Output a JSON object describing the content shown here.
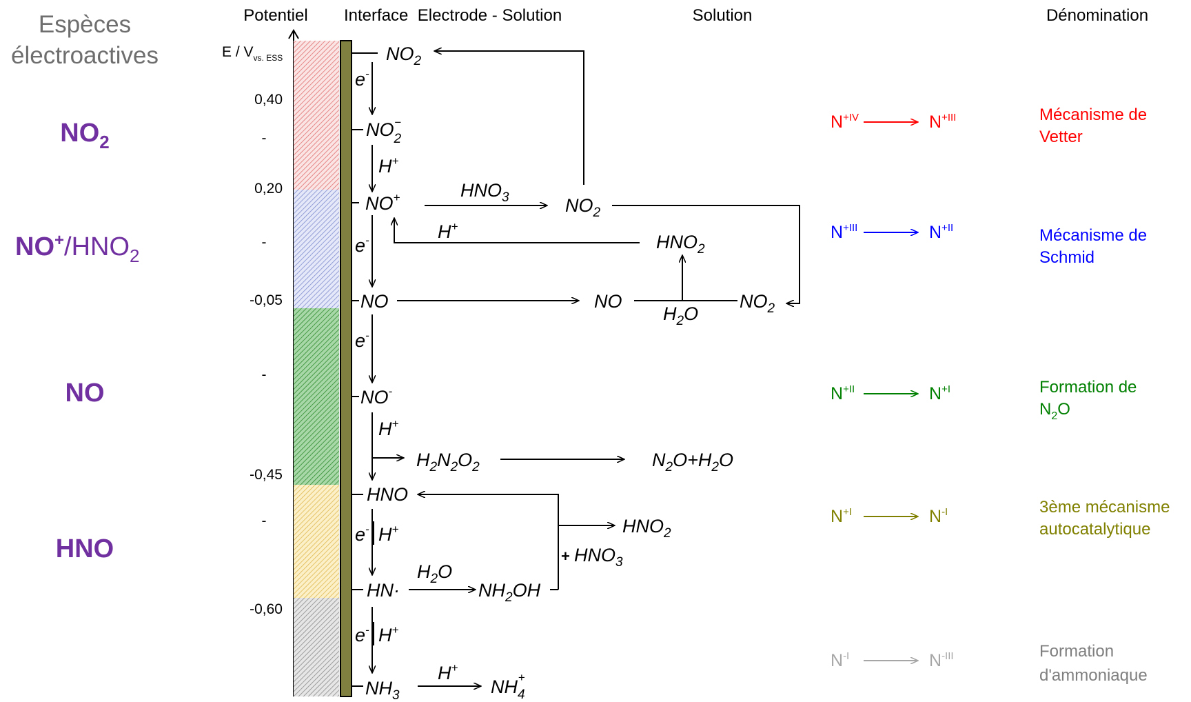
{
  "headers": {
    "especes_line1": "Espèces",
    "especes_line2": "électroactives",
    "potentiel": "Potentiel",
    "interface": "Interface  Electrode - Solution",
    "solution": "Solution",
    "denomination": "Dénomination"
  },
  "axis": {
    "label_main": "E / V",
    "label_sub": "vs. ESS",
    "ticks": [
      "0,40",
      "-",
      "0,20",
      "-",
      "-0,05",
      "-",
      "-0,45",
      "-",
      "-0,60"
    ]
  },
  "species": {
    "no2": {
      "main": "NO",
      "sub": "2"
    },
    "noplus": {
      "main": "NO",
      "sup": "+",
      "rest": "/HNO",
      "sub": "2"
    },
    "no": "NO",
    "hno": "HNO"
  },
  "interface_species": {
    "no2": {
      "main": "NO",
      "sub": "2"
    },
    "no2minus": {
      "main": "NO",
      "sub": "2",
      "sup": "−"
    },
    "noplus": {
      "main": "NO",
      "sup": "+"
    },
    "no": "NO",
    "nominus": {
      "main": "NO",
      "sup": "-"
    },
    "h2n2o2": {
      "a": "H",
      "b": "2",
      "c": "N",
      "d": "2",
      "e": "O",
      "f": "2"
    },
    "hno": "HNO",
    "hn": "HN·",
    "nh3": {
      "main": "NH",
      "sub": "3"
    }
  },
  "reagents": {
    "electron": "e",
    "electron_sup": "-",
    "proton": "H",
    "proton_sup": "+"
  },
  "solution_species": {
    "hno3": {
      "main": "HNO",
      "sub": "3"
    },
    "no2": {
      "main": "NO",
      "sub": "2"
    },
    "hno2": {
      "main": "HNO",
      "sub": "2"
    },
    "no": "NO",
    "h2o": {
      "a": "H",
      "sub": "2",
      "b": "O"
    },
    "no2_right": {
      "main": "NO",
      "sub": "2"
    },
    "n2o_h2o": {
      "a": "N",
      "b": "2",
      "c": "O+H",
      "d": "2",
      "e": "O"
    },
    "hno2_lower": {
      "main": "HNO",
      "sub": "2"
    },
    "plus_hno3": {
      "prefix": "+ ",
      "main": "HNO",
      "sub": "3"
    },
    "h2o_lower": {
      "a": "H",
      "sub": "2",
      "b": "O"
    },
    "nh2oh": {
      "a": "NH",
      "sub": "2",
      "b": "OH"
    },
    "nh4": {
      "main": "NH",
      "sub": "4",
      "sup": "+"
    }
  },
  "oxidation": [
    {
      "from": "N",
      "from_sup": "+IV",
      "to": "N",
      "to_sup": "+III",
      "color": "#ff0000"
    },
    {
      "from": "N",
      "from_sup": "+III",
      "to": "N",
      "to_sup": "+II",
      "color": "#0000ff"
    },
    {
      "from": "N",
      "from_sup": "+II",
      "to": "N",
      "to_sup": "+I",
      "color": "#008000"
    },
    {
      "from": "N",
      "from_sup": "+I",
      "to": "N",
      "to_sup": "-I",
      "color": "#808000"
    },
    {
      "from": "N",
      "from_sup": "-I",
      "to": "N",
      "to_sup": "-III",
      "color": "#a6a6a6"
    }
  ],
  "denominations": [
    {
      "line1": "Mécanisme de",
      "line2": "Vetter",
      "color": "#ff0000"
    },
    {
      "line1": "Mécanisme de",
      "line2": "Schmid",
      "color": "#0000ff"
    },
    {
      "line1": "Formation de",
      "line2_main": "N",
      "line2_sub": "2",
      "line2_rest": "O",
      "color": "#008000"
    },
    {
      "line1": "3ème mécanisme",
      "line2": "autocatalytique",
      "color": "#808000"
    },
    {
      "line1": "Formation",
      "line2": "d'ammoniaque",
      "color": "#7f7f7f"
    }
  ],
  "colors": {
    "red_band": "#e8a0a0",
    "blue_band": "#9aa8e0",
    "green_band": "#5fae5f",
    "yellow_band": "#f0d070",
    "gray_band": "#a0a0a0",
    "electrode": "#808040",
    "species": "#7030a0"
  }
}
